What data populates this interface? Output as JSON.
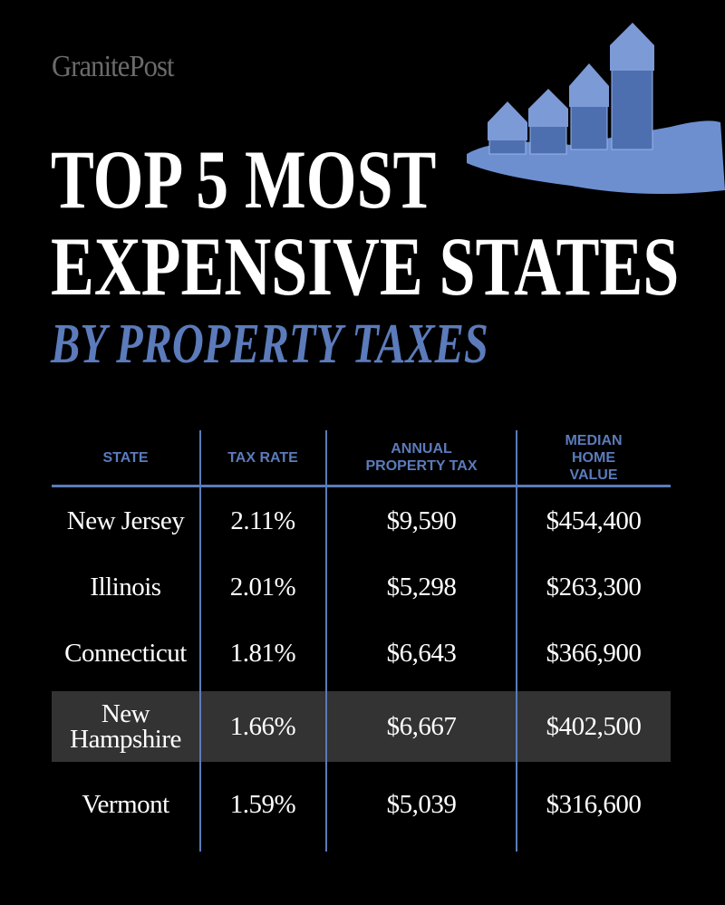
{
  "brand": "GranitePost",
  "title": [
    "TOP 5 MOST",
    "EXPENSIVE STATES"
  ],
  "subtitle": "BY PROPERTY TAXES",
  "table": {
    "headers": [
      "STATE",
      "TAX RATE",
      "ANNUAL PROPERTY TAX",
      "MEDIAN HOME VALUE"
    ],
    "rows": [
      [
        "New Jersey",
        "2.11%",
        "$9,590",
        "$454,400"
      ],
      [
        "Illinois",
        "2.01%",
        "$5,298",
        "$263,300"
      ],
      [
        "Connecticut",
        "1.81%",
        "$6,643",
        "$366,900"
      ],
      [
        "New Hampshire",
        "1.66%",
        "$6,667",
        "$402,500"
      ],
      [
        "Vermont",
        "1.59%",
        "$5,039",
        "$316,600"
      ]
    ]
  }
}
